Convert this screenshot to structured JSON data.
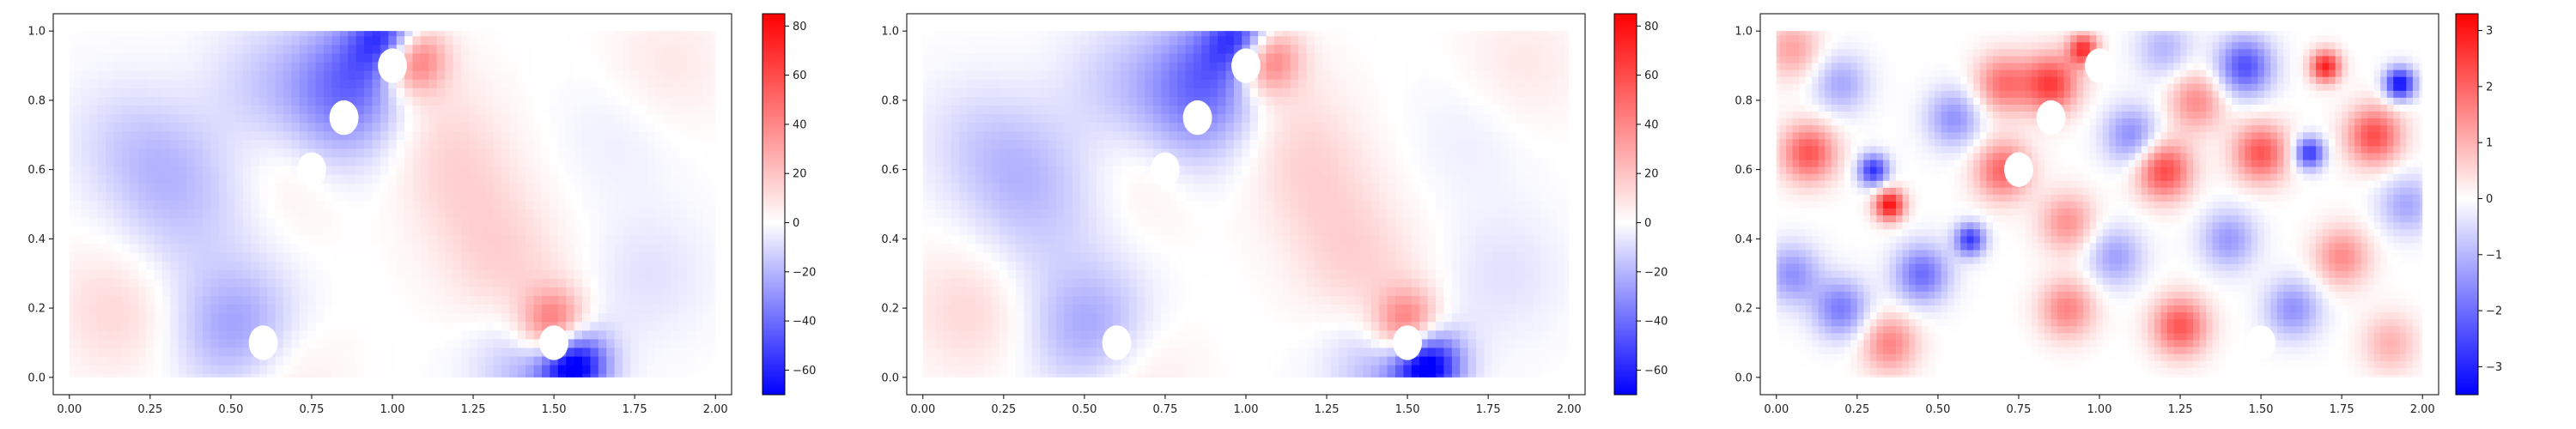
{
  "chart_data": [
    {
      "type": "heatmap",
      "title": "",
      "xlabel": "",
      "ylabel": "",
      "xlim": [
        -0.05,
        2.05
      ],
      "ylim": [
        -0.05,
        1.05
      ],
      "x_ticks": [
        "0.00",
        "0.25",
        "0.50",
        "0.75",
        "1.00",
        "1.25",
        "1.50",
        "1.75",
        "2.00"
      ],
      "y_ticks": [
        "0.0",
        "0.2",
        "0.4",
        "0.6",
        "0.8",
        "1.0"
      ],
      "colormap": "bwr",
      "colorbar": {
        "min": -70,
        "max": 85,
        "ticks": [
          "−60",
          "−40",
          "−20",
          "0",
          "20",
          "40",
          "60",
          "80"
        ]
      },
      "holes": [
        [
          0.6,
          0.1
        ],
        [
          0.75,
          0.6
        ],
        [
          0.85,
          0.75
        ],
        [
          1.0,
          0.9
        ],
        [
          1.5,
          0.1
        ]
      ],
      "features": [
        {
          "x": 1.0,
          "y": 0.97,
          "v": -70
        },
        {
          "x": 1.05,
          "y": 0.93,
          "v": 85
        },
        {
          "x": 0.93,
          "y": 0.9,
          "v": -25
        },
        {
          "x": 0.85,
          "y": 0.85,
          "v": -18
        },
        {
          "x": 0.8,
          "y": 0.7,
          "v": -15
        },
        {
          "x": 0.7,
          "y": 0.6,
          "v": 12
        },
        {
          "x": 0.3,
          "y": 0.6,
          "v": -15
        },
        {
          "x": 0.15,
          "y": 0.7,
          "v": -8
        },
        {
          "x": 0.3,
          "y": 0.4,
          "v": -6
        },
        {
          "x": 0.5,
          "y": 0.5,
          "v": -6
        },
        {
          "x": 0.15,
          "y": 0.2,
          "v": 14
        },
        {
          "x": 0.4,
          "y": 0.2,
          "v": -4
        },
        {
          "x": 0.55,
          "y": 0.12,
          "v": -35
        },
        {
          "x": 0.62,
          "y": 0.05,
          "v": 20
        },
        {
          "x": 1.2,
          "y": 0.6,
          "v": 12
        },
        {
          "x": 1.3,
          "y": 0.4,
          "v": 10
        },
        {
          "x": 1.1,
          "y": 0.8,
          "v": 9
        },
        {
          "x": 1.4,
          "y": 0.25,
          "v": 11
        },
        {
          "x": 1.5,
          "y": 0.15,
          "v": 60
        },
        {
          "x": 1.56,
          "y": 0.04,
          "v": -70
        },
        {
          "x": 1.45,
          "y": 0.05,
          "v": -25
        },
        {
          "x": 1.8,
          "y": 0.3,
          "v": -8
        },
        {
          "x": 1.7,
          "y": 0.7,
          "v": -5
        },
        {
          "x": 1.85,
          "y": 0.9,
          "v": 8
        },
        {
          "x": 0.6,
          "y": 0.85,
          "v": -12
        }
      ]
    },
    {
      "type": "heatmap",
      "title": "",
      "xlabel": "",
      "ylabel": "",
      "xlim": [
        -0.05,
        2.05
      ],
      "ylim": [
        -0.05,
        1.05
      ],
      "x_ticks": [
        "0.00",
        "0.25",
        "0.50",
        "0.75",
        "1.00",
        "1.25",
        "1.50",
        "1.75",
        "2.00"
      ],
      "y_ticks": [
        "0.0",
        "0.2",
        "0.4",
        "0.6",
        "0.8",
        "1.0"
      ],
      "colormap": "bwr",
      "colorbar": {
        "min": -70,
        "max": 85,
        "ticks": [
          "−60",
          "−40",
          "−20",
          "0",
          "20",
          "40",
          "60",
          "80"
        ]
      },
      "holes": [
        [
          0.6,
          0.1
        ],
        [
          0.75,
          0.6
        ],
        [
          0.85,
          0.75
        ],
        [
          1.0,
          0.9
        ],
        [
          1.5,
          0.1
        ]
      ],
      "features": [
        {
          "x": 1.0,
          "y": 0.97,
          "v": -68
        },
        {
          "x": 1.05,
          "y": 0.93,
          "v": 82
        },
        {
          "x": 0.93,
          "y": 0.9,
          "v": -25
        },
        {
          "x": 0.85,
          "y": 0.85,
          "v": -18
        },
        {
          "x": 0.8,
          "y": 0.7,
          "v": -15
        },
        {
          "x": 0.7,
          "y": 0.6,
          "v": 12
        },
        {
          "x": 0.3,
          "y": 0.6,
          "v": -15
        },
        {
          "x": 0.15,
          "y": 0.7,
          "v": -8
        },
        {
          "x": 0.3,
          "y": 0.4,
          "v": -6
        },
        {
          "x": 0.5,
          "y": 0.5,
          "v": -6
        },
        {
          "x": 0.15,
          "y": 0.2,
          "v": 14
        },
        {
          "x": 0.4,
          "y": 0.2,
          "v": -4
        },
        {
          "x": 0.55,
          "y": 0.12,
          "v": -33
        },
        {
          "x": 0.62,
          "y": 0.05,
          "v": 20
        },
        {
          "x": 1.2,
          "y": 0.6,
          "v": 12
        },
        {
          "x": 1.3,
          "y": 0.4,
          "v": 10
        },
        {
          "x": 1.1,
          "y": 0.8,
          "v": 9
        },
        {
          "x": 1.4,
          "y": 0.25,
          "v": 11
        },
        {
          "x": 1.5,
          "y": 0.15,
          "v": 58
        },
        {
          "x": 1.56,
          "y": 0.04,
          "v": -70
        },
        {
          "x": 1.45,
          "y": 0.05,
          "v": -25
        },
        {
          "x": 1.8,
          "y": 0.3,
          "v": -8
        },
        {
          "x": 1.7,
          "y": 0.7,
          "v": -5
        },
        {
          "x": 1.85,
          "y": 0.9,
          "v": 8
        },
        {
          "x": 0.6,
          "y": 0.85,
          "v": -12
        }
      ]
    },
    {
      "type": "heatmap",
      "title": "",
      "xlabel": "",
      "ylabel": "",
      "xlim": [
        -0.05,
        2.05
      ],
      "ylim": [
        -0.05,
        1.05
      ],
      "x_ticks": [
        "0.00",
        "0.25",
        "0.50",
        "0.75",
        "1.00",
        "1.25",
        "1.50",
        "1.75",
        "2.00"
      ],
      "y_ticks": [
        "0.0",
        "0.2",
        "0.4",
        "0.6",
        "0.8",
        "1.0"
      ],
      "colormap": "bwr",
      "colorbar": {
        "min": -3.5,
        "max": 3.3,
        "ticks": [
          "−3",
          "−2",
          "−1",
          "0",
          "1",
          "2",
          "3"
        ]
      },
      "holes": [
        [
          0.6,
          0.1
        ],
        [
          0.75,
          0.6
        ],
        [
          0.85,
          0.75
        ],
        [
          1.0,
          0.9
        ],
        [
          1.5,
          0.1
        ]
      ],
      "features": [
        {
          "x": 0.05,
          "y": 0.95,
          "v": 1.2
        },
        {
          "x": 0.1,
          "y": 0.65,
          "v": 2.2
        },
        {
          "x": 0.05,
          "y": 0.3,
          "v": -1.5
        },
        {
          "x": 0.2,
          "y": 0.2,
          "v": -1.8
        },
        {
          "x": 0.3,
          "y": 0.6,
          "v": -2.8
        },
        {
          "x": 0.35,
          "y": 0.5,
          "v": 3.1
        },
        {
          "x": 0.45,
          "y": 0.3,
          "v": -2.0
        },
        {
          "x": 0.6,
          "y": 0.4,
          "v": -2.7
        },
        {
          "x": 0.7,
          "y": 0.6,
          "v": 2.0
        },
        {
          "x": 0.55,
          "y": 0.75,
          "v": -1.5
        },
        {
          "x": 0.7,
          "y": 0.85,
          "v": 1.8
        },
        {
          "x": 0.85,
          "y": 0.85,
          "v": 2.5
        },
        {
          "x": 0.95,
          "y": 0.95,
          "v": 2.6
        },
        {
          "x": 1.1,
          "y": 0.7,
          "v": -1.6
        },
        {
          "x": 1.2,
          "y": 0.6,
          "v": 2.4
        },
        {
          "x": 1.3,
          "y": 0.8,
          "v": 1.5
        },
        {
          "x": 1.45,
          "y": 0.9,
          "v": -2.4
        },
        {
          "x": 1.5,
          "y": 0.65,
          "v": 2.2
        },
        {
          "x": 1.65,
          "y": 0.65,
          "v": -2.8
        },
        {
          "x": 1.7,
          "y": 0.9,
          "v": 2.9
        },
        {
          "x": 1.85,
          "y": 0.7,
          "v": 2.3
        },
        {
          "x": 1.93,
          "y": 0.85,
          "v": -3.4
        },
        {
          "x": 1.95,
          "y": 0.5,
          "v": -1.2
        },
        {
          "x": 1.75,
          "y": 0.35,
          "v": 1.5
        },
        {
          "x": 1.6,
          "y": 0.2,
          "v": -1.5
        },
        {
          "x": 1.25,
          "y": 0.15,
          "v": 2.2
        },
        {
          "x": 1.05,
          "y": 0.35,
          "v": -1.3
        },
        {
          "x": 0.9,
          "y": 0.2,
          "v": 1.6
        },
        {
          "x": 0.35,
          "y": 0.1,
          "v": 1.6
        },
        {
          "x": 1.4,
          "y": 0.4,
          "v": -1.4
        },
        {
          "x": 0.9,
          "y": 0.45,
          "v": 1.4
        },
        {
          "x": 0.2,
          "y": 0.85,
          "v": -1.2
        },
        {
          "x": 1.9,
          "y": 0.1,
          "v": 1.0
        },
        {
          "x": 1.2,
          "y": 0.95,
          "v": -1.0
        }
      ]
    }
  ]
}
